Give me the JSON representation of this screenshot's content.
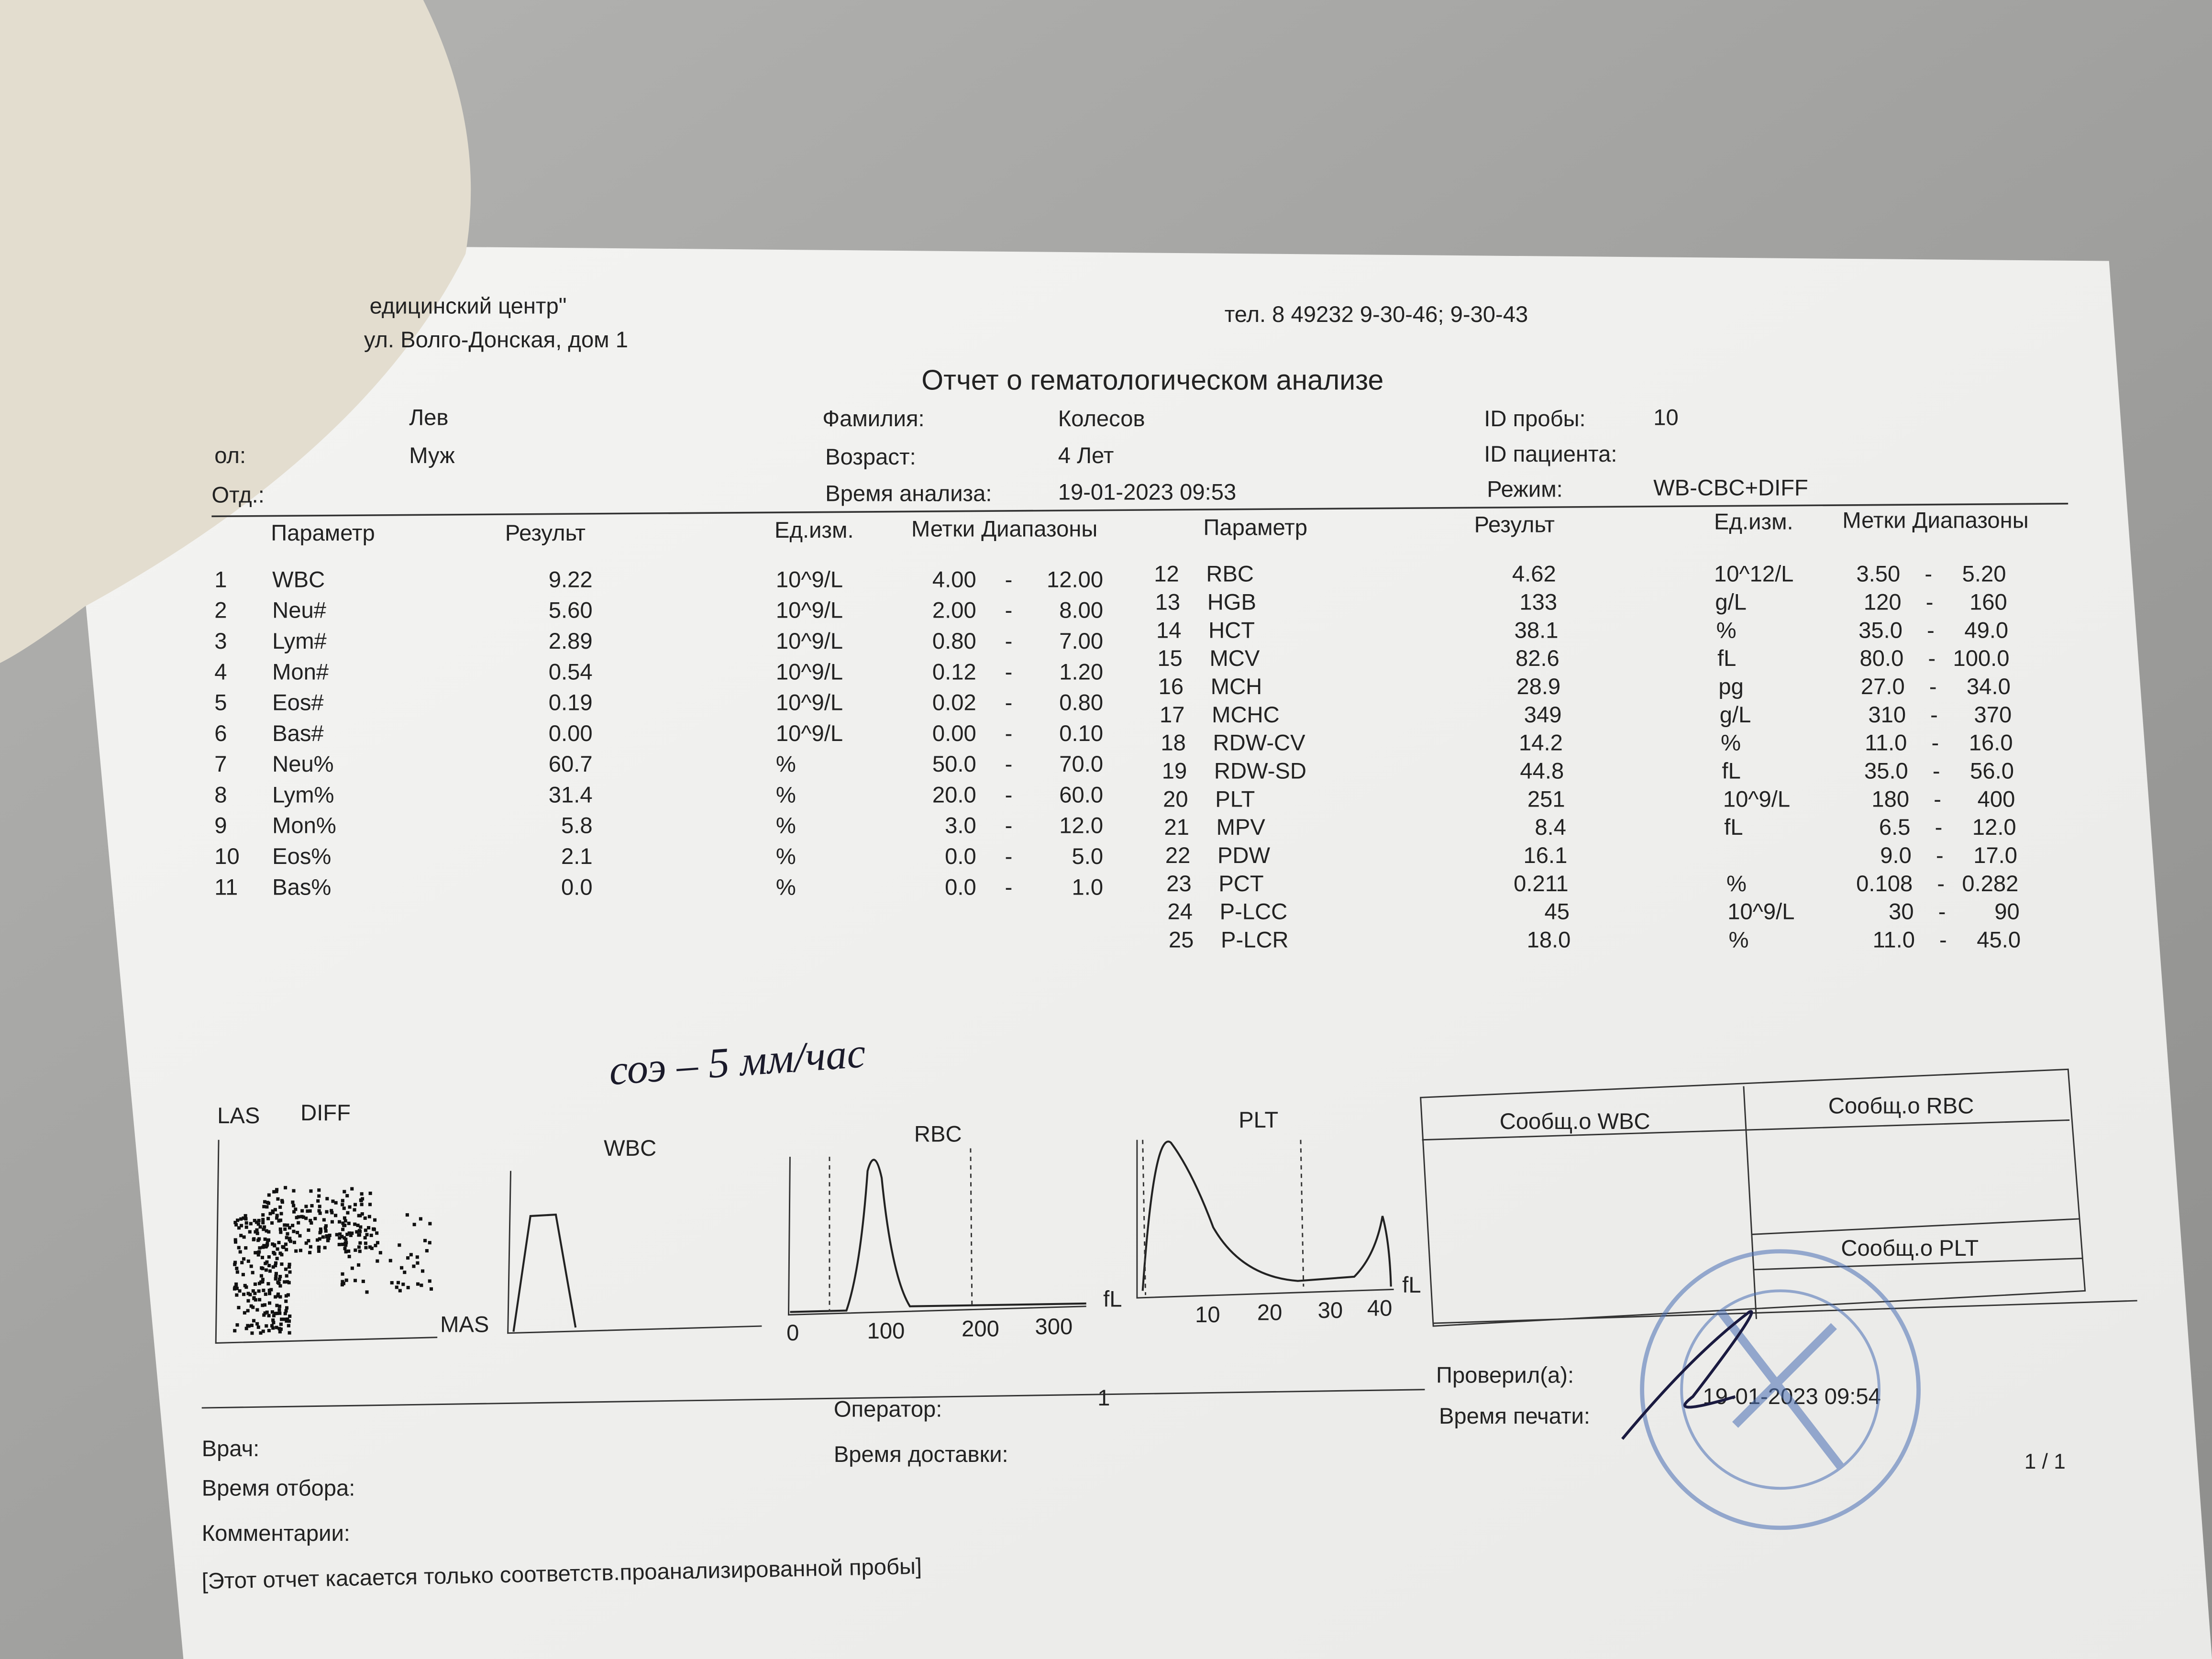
{
  "header": {
    "clinic": "едицинский центр\"",
    "address": "ул. Волго-Донская, дом 1",
    "phone": "тел. 8 49232 9-30-46; 9-30-43",
    "title": "Отчет о гематологическом анализе"
  },
  "patient": {
    "first_name": "Лев",
    "sex_label": "ол:",
    "sex": "Муж",
    "department_label": "Отд.:",
    "surname_label": "Фамилия:",
    "surname": "Колесов",
    "age_label": "Возраст:",
    "age": "4 Лет",
    "analysis_time_label": "Время анализа:",
    "analysis_time": "19-01-2023 09:53",
    "sample_id_label": "ID пробы:",
    "sample_id": "10",
    "patient_id_label": "ID пациента:",
    "mode_label": "Режим:",
    "mode": "WB-CBC+DIFF"
  },
  "table": {
    "headers": [
      "Параметр",
      "Результ",
      "Ед.изм.",
      "Метки Диапазоны",
      "Параметр",
      "Результ",
      "Ед.изм.",
      "Метки Диапазоны"
    ],
    "separator": "-",
    "left_rows": [
      [
        "1",
        "WBC",
        "9.22",
        "10^9/L",
        "4.00",
        "12.00"
      ],
      [
        "2",
        "Neu#",
        "5.60",
        "10^9/L",
        "2.00",
        "8.00"
      ],
      [
        "3",
        "Lym#",
        "2.89",
        "10^9/L",
        "0.80",
        "7.00"
      ],
      [
        "4",
        "Mon#",
        "0.54",
        "10^9/L",
        "0.12",
        "1.20"
      ],
      [
        "5",
        "Eos#",
        "0.19",
        "10^9/L",
        "0.02",
        "0.80"
      ],
      [
        "6",
        "Bas#",
        "0.00",
        "10^9/L",
        "0.00",
        "0.10"
      ],
      [
        "7",
        "Neu%",
        "60.7",
        "%",
        "50.0",
        "70.0"
      ],
      [
        "8",
        "Lym%",
        "31.4",
        "%",
        "20.0",
        "60.0"
      ],
      [
        "9",
        "Mon%",
        "5.8",
        "%",
        "3.0",
        "12.0"
      ],
      [
        "10",
        "Eos%",
        "2.1",
        "%",
        "0.0",
        "5.0"
      ],
      [
        "11",
        "Bas%",
        "0.0",
        "%",
        "0.0",
        "1.0"
      ]
    ],
    "right_rows": [
      [
        "12",
        "RBC",
        "4.62",
        "10^12/L",
        "3.50",
        "5.20"
      ],
      [
        "13",
        "HGB",
        "133",
        "g/L",
        "120",
        "160"
      ],
      [
        "14",
        "HCT",
        "38.1",
        "%",
        "35.0",
        "49.0"
      ],
      [
        "15",
        "MCV",
        "82.6",
        "fL",
        "80.0",
        "100.0"
      ],
      [
        "16",
        "MCH",
        "28.9",
        "pg",
        "27.0",
        "34.0"
      ],
      [
        "17",
        "MCHC",
        "349",
        "g/L",
        "310",
        "370"
      ],
      [
        "18",
        "RDW-CV",
        "14.2",
        "%",
        "11.0",
        "16.0"
      ],
      [
        "19",
        "RDW-SD",
        "44.8",
        "fL",
        "35.0",
        "56.0"
      ],
      [
        "20",
        "PLT",
        "251",
        "10^9/L",
        "180",
        "400"
      ],
      [
        "21",
        "MPV",
        "8.4",
        "fL",
        "6.5",
        "12.0"
      ],
      [
        "22",
        "PDW",
        "16.1",
        null,
        "9.0",
        "17.0"
      ],
      [
        "23",
        "PCT",
        "0.211",
        "%",
        "0.108",
        "0.282"
      ],
      [
        "24",
        "P-LCC",
        "45",
        "10^9/L",
        "30",
        "90"
      ],
      [
        "25",
        "P-LCR",
        "18.0",
        "%",
        "11.0",
        "45.0"
      ]
    ]
  },
  "handwritten_note": "соэ – 5 мм/час",
  "histograms": {
    "diff_title_1": "LAS",
    "diff_title_2": "DIFF",
    "diff_axis": "MAS",
    "wbc_title": "WBC",
    "rbc_title": "RBC",
    "rbc_ticks": [
      "0",
      "100",
      "200",
      "300"
    ],
    "rbc_unit": "fL",
    "plt_title": "PLT",
    "plt_ticks": [
      "10",
      "20",
      "30",
      "40"
    ],
    "plt_unit": "fL"
  },
  "messages": {
    "wbc": "Сообщ.о WBC",
    "rbc": "Сообщ.о RBC",
    "plt": "Сообщ.о PLT"
  },
  "footer": {
    "operator_label": "Оператор:",
    "operator": "1",
    "delivery_label": "Время доставки:",
    "checked_label": "Проверил(а):",
    "print_time_label": "Время печати:",
    "print_time": "19-01-2023 09:54",
    "page": "1 / 1",
    "doctor_label": "Врач:",
    "sampling_label": "Время отбора:",
    "comments_label": "Комментарии:",
    "disclaimer": "[Этот отчет касается только соответств.проанализированной пробы]"
  }
}
